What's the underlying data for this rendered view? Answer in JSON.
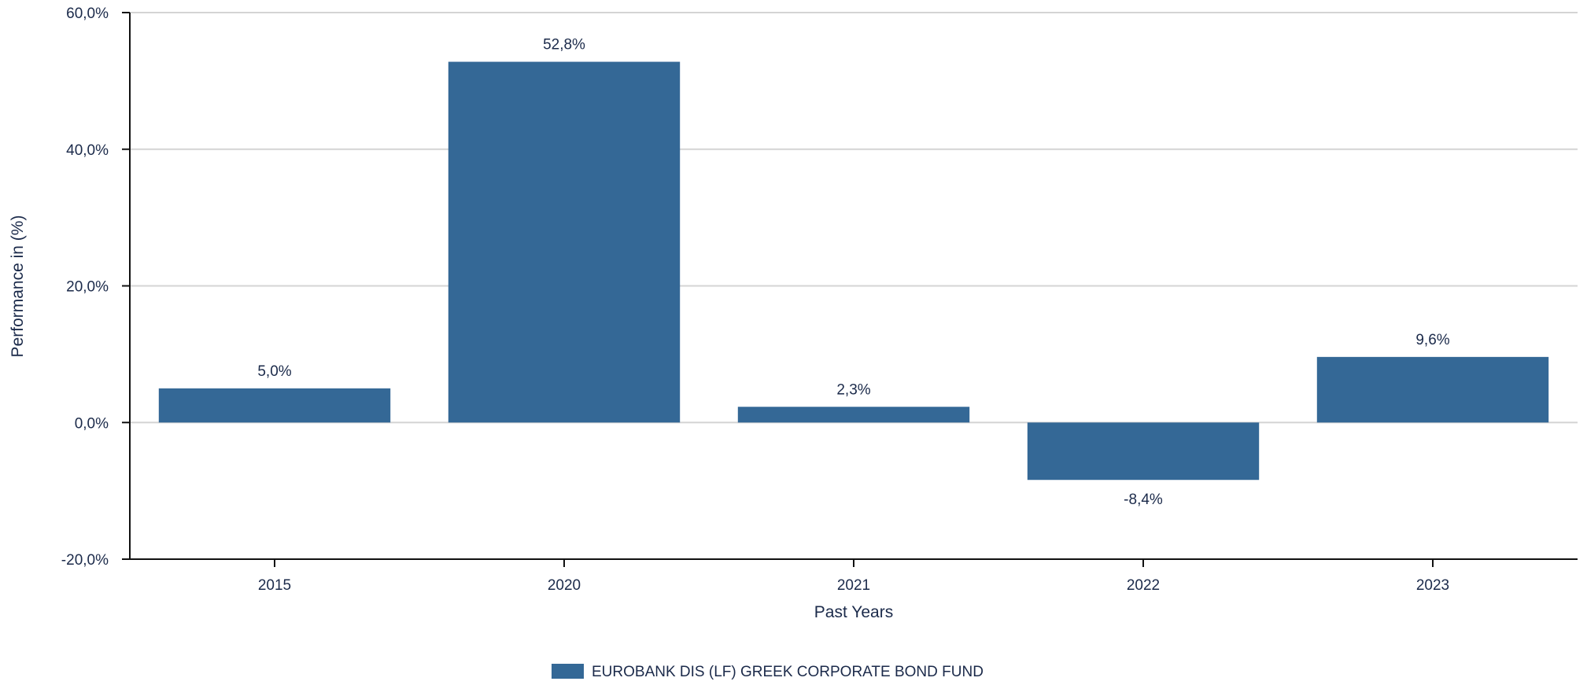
{
  "chart_data": {
    "type": "bar",
    "title": "",
    "xlabel": "Past Years",
    "ylabel": "Performance in (%)",
    "categories": [
      "2015",
      "2020",
      "2021",
      "2022",
      "2023"
    ],
    "series": [
      {
        "name": "EUROBANK DIS (LF) GREEK CORPORATE BOND FUND",
        "values": [
          5.0,
          52.8,
          2.3,
          -8.4,
          9.6
        ],
        "value_labels": [
          "5,0%",
          "52,8%",
          "2,3%",
          "-8,4%",
          "9,6%"
        ],
        "color": "#346896"
      }
    ],
    "ylim": [
      -20,
      60
    ],
    "yticks": [
      -20,
      0,
      20,
      40,
      60
    ],
    "ytick_labels": [
      "-20,0%",
      "0,0%",
      "20,0%",
      "40,0%",
      "60,0%"
    ],
    "grid": true,
    "legend": "bottom-center"
  },
  "colors": {
    "bar": "#346896",
    "text": "#1b2a4a",
    "grid": "#d4d4d4",
    "axis": "#111111"
  }
}
